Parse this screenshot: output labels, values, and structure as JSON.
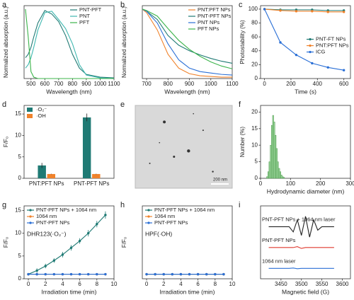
{
  "chart_data": [
    {
      "label": "a",
      "type": "line",
      "xlabel": "Wavelength (nm)",
      "ylabel": "Normalized absorption (a.u.)",
      "x": [
        460,
        480,
        500,
        520,
        550,
        600,
        650,
        700,
        750,
        800,
        850,
        900,
        1000,
        1100
      ],
      "xlim": [
        450,
        1100
      ],
      "xticks": [
        500,
        600,
        700,
        800,
        900,
        1000,
        1100
      ],
      "ylim": [
        0,
        1.05
      ],
      "legend": "top-right",
      "series": [
        {
          "name": "PNT-PFT",
          "color": "#1f7a74",
          "values": [
            0.3,
            0.35,
            0.45,
            0.6,
            0.8,
            0.98,
            0.93,
            0.82,
            0.62,
            0.35,
            0.15,
            0.06,
            0.02,
            0.01
          ]
        },
        {
          "name": "PNT",
          "color": "#3fb8b0",
          "values": [
            0.15,
            0.2,
            0.3,
            0.45,
            0.7,
            0.95,
            0.97,
            0.85,
            0.72,
            0.5,
            0.2,
            0.05,
            0.01,
            0
          ]
        },
        {
          "name": "PFT",
          "color": "#3cb44b",
          "values": [
            1,
            0.6,
            0.1,
            0.02,
            0,
            0,
            0,
            0,
            0,
            0,
            0,
            0,
            0,
            0
          ]
        }
      ]
    },
    {
      "label": "b",
      "type": "line",
      "xlabel": "Wavelength (nm)",
      "ylabel": "Normalized absorption (a.u.)",
      "x": [
        680,
        700,
        750,
        800,
        850,
        900,
        950,
        1000,
        1050,
        1100
      ],
      "xlim": [
        680,
        1100
      ],
      "xticks": [
        700,
        800,
        900,
        1000,
        1100
      ],
      "ylim": [
        0,
        1.05
      ],
      "legend": "top-right",
      "series": [
        {
          "name": "PNT:PFT NPs",
          "color": "#f0822b",
          "values": [
            1,
            0.95,
            0.7,
            0.35,
            0.15,
            0.07,
            0.04,
            0.03,
            0.02,
            0.02
          ]
        },
        {
          "name": "PNT-PFT NPs",
          "color": "#1f7a74",
          "values": [
            1,
            0.97,
            0.85,
            0.62,
            0.48,
            0.4,
            0.34,
            0.29,
            0.25,
            0.22
          ]
        },
        {
          "name": "PNT NPs",
          "color": "#2a6fd6",
          "values": [
            1,
            0.97,
            0.8,
            0.5,
            0.27,
            0.15,
            0.1,
            0.08,
            0.06,
            0.05
          ]
        },
        {
          "name": "PFT NPs",
          "color": "#3cb44b",
          "values": [
            1,
            0.98,
            0.9,
            0.72,
            0.55,
            0.42,
            0.32,
            0.24,
            0.18,
            0.14
          ]
        }
      ]
    },
    {
      "label": "c",
      "type": "line",
      "markers": true,
      "xlabel": "Time (s)",
      "ylabel": "Photostability (%)",
      "x": [
        0,
        120,
        240,
        360,
        480,
        600
      ],
      "xlim": [
        -30,
        650
      ],
      "xticks": [
        0,
        200,
        400,
        600
      ],
      "ylim": [
        0,
        105
      ],
      "yticks": [
        0,
        20,
        40,
        60,
        80,
        100
      ],
      "legend": "middle-right",
      "series": [
        {
          "name": "PNT-FT NPs",
          "color": "#1f7a74",
          "values": [
            100,
            99,
            99,
            99,
            98,
            98
          ]
        },
        {
          "name": "PNT:PFT NPs",
          "color": "#f0822b",
          "values": [
            100,
            98,
            97,
            97,
            96,
            96
          ]
        },
        {
          "name": "ICG",
          "color": "#2a6fd6",
          "values": [
            100,
            52,
            34,
            22,
            16,
            12
          ]
        }
      ]
    },
    {
      "label": "d",
      "type": "bar",
      "ylabel": "F/F₀",
      "categories": [
        "PNT:PFT NPs",
        "PNT-PFT NPs"
      ],
      "ylim": [
        0,
        17
      ],
      "yticks": [
        0,
        5,
        10,
        15
      ],
      "legend": "top-left",
      "series": [
        {
          "name": "·O₂⁻",
          "color": "#1f7a74",
          "values": [
            3,
            14.2
          ],
          "errors": [
            0.6,
            0.9
          ]
        },
        {
          "name": "·OH",
          "color": "#f0822b",
          "values": [
            1,
            1
          ],
          "errors": [
            0.05,
            0.05
          ]
        }
      ]
    },
    {
      "label": "e",
      "type": "image",
      "annotation": "200 nm"
    },
    {
      "label": "f",
      "type": "histogram",
      "xlabel": "Hydrodynamic diameter (nm)",
      "ylabel": "Number (%)",
      "bins": [
        20,
        24,
        28,
        32,
        36,
        40,
        44,
        48,
        52,
        56,
        60,
        64,
        68,
        72,
        76,
        80
      ],
      "values": [
        0.5,
        2,
        5,
        10,
        16,
        19,
        17,
        13,
        9,
        5,
        3,
        2,
        1,
        0.5,
        0.3
      ],
      "color": "#9ad69a",
      "xlim": [
        0,
        300
      ],
      "xticks": [
        0,
        100,
        200,
        300
      ],
      "ylim": [
        0,
        22
      ],
      "yticks": [
        0,
        5,
        10,
        15,
        20
      ]
    },
    {
      "label": "g",
      "type": "line",
      "markers": true,
      "xlabel": "Irradiation time (min)",
      "ylabel": "F/F₀",
      "annotation": "DHR123(·O₂⁻)",
      "x": [
        0,
        1,
        2,
        3,
        4,
        5,
        6,
        7,
        8,
        9
      ],
      "xlim": [
        -0.5,
        10
      ],
      "xticks": [
        0,
        2,
        4,
        6,
        8,
        10
      ],
      "ylim": [
        0,
        16
      ],
      "yticks": [
        0,
        5,
        10,
        15
      ],
      "legend": "top-left",
      "series": [
        {
          "name": "PNT-PFT NPs + 1064 nm",
          "color": "#1f7a74",
          "values": [
            1,
            1.8,
            2.8,
            4,
            5.3,
            6.8,
            8.3,
            10,
            12,
            14
          ],
          "errors": [
            0.2,
            0.5,
            0.5,
            0.5,
            0.6,
            0.6,
            0.6,
            0.7,
            0.7,
            0.8
          ]
        },
        {
          "name": "1064 nm",
          "color": "#f0822b",
          "values": [
            1,
            1,
            1,
            1,
            1,
            1,
            1,
            1,
            1,
            1
          ]
        },
        {
          "name": "PNT-PFT NPs",
          "color": "#2a6fd6",
          "values": [
            1,
            1,
            1,
            1,
            1,
            1,
            1,
            1,
            1,
            1
          ]
        }
      ]
    },
    {
      "label": "h",
      "type": "line",
      "markers": true,
      "xlabel": "Irradiation time (min)",
      "ylabel": "F/F₀",
      "annotation": "HPF(·OH)",
      "x": [
        0,
        1,
        2,
        3,
        4,
        5,
        6,
        7,
        8,
        9
      ],
      "xlim": [
        -0.5,
        10
      ],
      "xticks": [
        0,
        2,
        4,
        6,
        8,
        10
      ],
      "ylim": [
        0,
        16
      ],
      "legend": "top-left",
      "series": [
        {
          "name": "PNT-PFT NPs + 1064 nm",
          "color": "#1f7a74",
          "values": [
            1,
            1,
            1,
            1,
            1,
            1,
            1,
            1,
            1,
            1
          ]
        },
        {
          "name": "1064 nm",
          "color": "#f0822b",
          "values": [
            1,
            1,
            1,
            1,
            1,
            1,
            1,
            1,
            1,
            1
          ]
        },
        {
          "name": "PNT-PFT NPs",
          "color": "#2a6fd6",
          "values": [
            1,
            1,
            1,
            1,
            1,
            1,
            1,
            1,
            1,
            1
          ]
        }
      ]
    },
    {
      "label": "i",
      "type": "line",
      "xlabel": "Magnetic field (G)",
      "x": [
        3420,
        3440,
        3460,
        3470,
        3480,
        3490,
        3500,
        3510,
        3520,
        3530,
        3540,
        3550,
        3560,
        3580
      ],
      "xlim": [
        3400,
        3620
      ],
      "xticks": [
        3450,
        3500,
        3550,
        3600
      ],
      "ylim": [
        0,
        4.2
      ],
      "legend": "inline",
      "series": [
        {
          "name": "PNT-PFT NPs + 1064 nm laser",
          "color": "#222222",
          "values": [
            3,
            3,
            3,
            3,
            2.7,
            3.4,
            2.5,
            3.6,
            2.4,
            3.4,
            2.8,
            3,
            3,
            3
          ]
        },
        {
          "name": "PNT-PFT NPs",
          "color": "#e03a2f",
          "values": [
            1.8,
            1.8,
            1.8,
            1.8,
            1.8,
            1.85,
            1.75,
            1.8,
            1.8,
            1.8,
            1.8,
            1.8,
            1.8,
            1.8
          ]
        },
        {
          "name": "1064 nm laser",
          "color": "#2a6fd6",
          "values": [
            0.6,
            0.6,
            0.6,
            0.6,
            0.62,
            0.58,
            0.6,
            0.6,
            0.6,
            0.6,
            0.6,
            0.6,
            0.6,
            0.6
          ]
        }
      ]
    }
  ]
}
